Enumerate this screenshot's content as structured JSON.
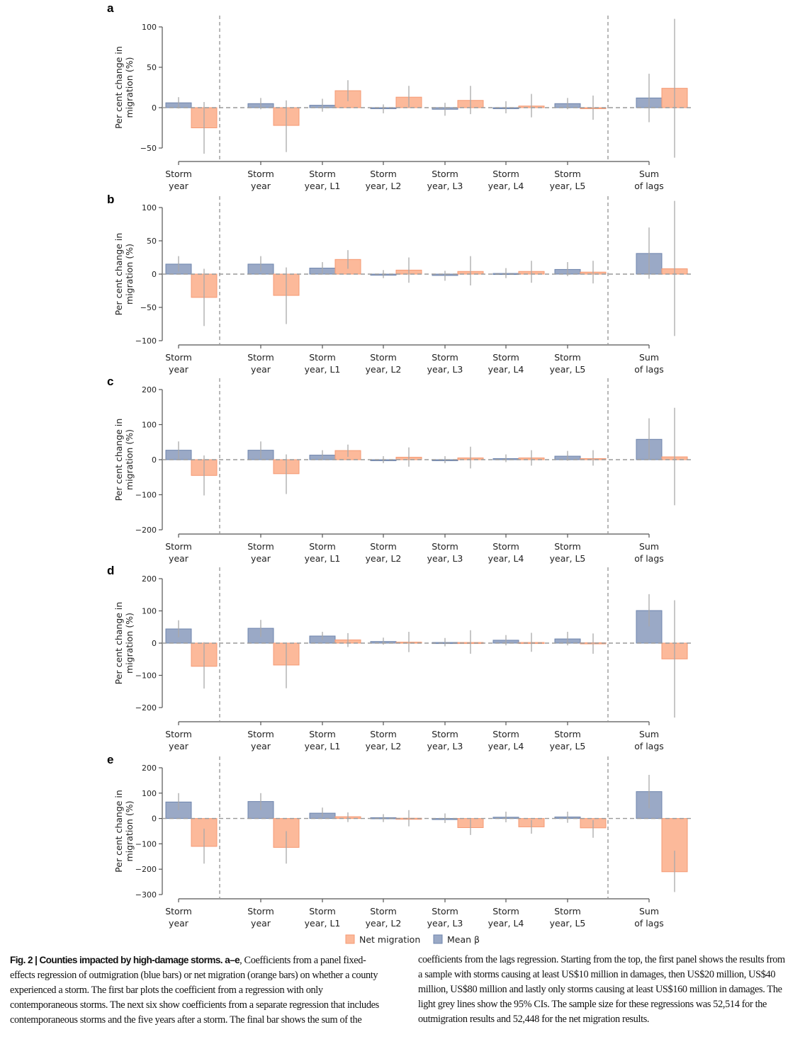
{
  "figure": {
    "colors": {
      "outmigration": "#9aa9c6",
      "outmigration_edge": "#6f85ad",
      "net": "#fcb99a",
      "net_edge": "#f59a74",
      "ci": "#a9a9a9",
      "axis": "#555555",
      "dash": "#9a9a9a"
    },
    "legend": {
      "net_label": "Net migration",
      "mean_label": "Mean β"
    },
    "caption": {
      "title": "Fig. 2 | Counties impacted by high-damage storms.",
      "panels_ref": "a–e",
      "col1": ", Coefficients from a panel fixed-effects regression of outmigration (blue bars) or net migration (orange bars) on whether a county experienced a storm. The first bar plots the coefficient from a regression with only contemporaneous storms. The next six show coefficients from a separate regression that includes contemporaneous storms and the five years after a storm. The final bar shows the sum of the",
      "col2": "coefficients from the lags regression. Starting from the top, the first panel shows the results from a sample with storms causing at least US$10 million in damages, then US$20 million, US$40 million, US$80 million and lastly only storms causing at least US$160 million in damages. The light grey lines show the 95% CIs. The sample size for these regressions was 52,514 for the outmigration results and 52,448 for the net migration results."
    }
  },
  "chart_data": [
    {
      "type": "bar",
      "panel": "a",
      "ylabel": "Per cent change in migration (%)",
      "categories": [
        [
          "Storm",
          "year"
        ],
        [
          "Storm",
          "year"
        ],
        [
          "Storm",
          "year, L1"
        ],
        [
          "Storm",
          "year, L2"
        ],
        [
          "Storm",
          "year, L3"
        ],
        [
          "Storm",
          "year, L4"
        ],
        [
          "Storm",
          "year, L5"
        ],
        [
          "Sum",
          "of lags"
        ]
      ],
      "ylim": [
        -50,
        100
      ],
      "yticks": [
        -50,
        0,
        50,
        100
      ],
      "series": [
        {
          "name": "Mean β",
          "values": [
            6,
            5,
            3,
            -1,
            -2,
            0,
            5,
            12
          ],
          "ci": [
            [
              -1,
              13
            ],
            [
              -2,
              12
            ],
            [
              -5,
              11
            ],
            [
              -7,
              4
            ],
            [
              -10,
              6
            ],
            [
              -7,
              8
            ],
            [
              -2,
              12
            ],
            [
              -18,
              42
            ]
          ]
        },
        {
          "name": "Net migration",
          "values": [
            -25,
            -22,
            21,
            13,
            9,
            2,
            0,
            24
          ],
          "ci": [
            [
              -57,
              7
            ],
            [
              -55,
              9
            ],
            [
              8,
              34
            ],
            [
              0,
              27
            ],
            [
              -8,
              27
            ],
            [
              -12,
              17
            ],
            [
              -15,
              15
            ],
            [
              -62,
              110
            ]
          ]
        }
      ]
    },
    {
      "type": "bar",
      "panel": "b",
      "ylabel": "Per cent change in migration (%)",
      "categories": [
        [
          "Storm",
          "year"
        ],
        [
          "Storm",
          "year"
        ],
        [
          "Storm",
          "year, L1"
        ],
        [
          "Storm",
          "year, L2"
        ],
        [
          "Storm",
          "year, L3"
        ],
        [
          "Storm",
          "year, L4"
        ],
        [
          "Storm",
          "year, L5"
        ],
        [
          "Sum",
          "of lags"
        ]
      ],
      "ylim": [
        -100,
        100
      ],
      "yticks": [
        -100,
        -50,
        0,
        50,
        100
      ],
      "series": [
        {
          "name": "Mean β",
          "values": [
            15,
            15,
            9,
            0,
            -2,
            1,
            7,
            31
          ],
          "ci": [
            [
              4,
              27
            ],
            [
              4,
              27
            ],
            [
              0,
              18
            ],
            [
              -6,
              6
            ],
            [
              -10,
              5
            ],
            [
              -6,
              9
            ],
            [
              -3,
              18
            ],
            [
              -7,
              70
            ]
          ]
        },
        {
          "name": "Net migration",
          "values": [
            -35,
            -32,
            22,
            6,
            4,
            4,
            3,
            8
          ],
          "ci": [
            [
              -78,
              8
            ],
            [
              -75,
              10
            ],
            [
              8,
              36
            ],
            [
              -13,
              25
            ],
            [
              -17,
              27
            ],
            [
              -13,
              20
            ],
            [
              -14,
              20
            ],
            [
              -93,
              110
            ]
          ]
        }
      ]
    },
    {
      "type": "bar",
      "panel": "c",
      "ylabel": "Per cent change in migration (%)",
      "categories": [
        [
          "Storm",
          "year"
        ],
        [
          "Storm",
          "year"
        ],
        [
          "Storm",
          "year, L1"
        ],
        [
          "Storm",
          "year, L2"
        ],
        [
          "Storm",
          "year, L3"
        ],
        [
          "Storm",
          "year, L4"
        ],
        [
          "Storm",
          "year, L5"
        ],
        [
          "Sum",
          "of lags"
        ]
      ],
      "ylim": [
        -200,
        200
      ],
      "yticks": [
        -200,
        -100,
        0,
        100,
        200
      ],
      "series": [
        {
          "name": "Mean β",
          "values": [
            27,
            27,
            13,
            0,
            0,
            3,
            10,
            58
          ],
          "ci": [
            [
              3,
              52
            ],
            [
              3,
              52
            ],
            [
              0,
              27
            ],
            [
              -10,
              10
            ],
            [
              -10,
              10
            ],
            [
              -7,
              15
            ],
            [
              -3,
              25
            ],
            [
              0,
              118
            ]
          ]
        },
        {
          "name": "Net migration",
          "values": [
            -45,
            -40,
            26,
            7,
            5,
            5,
            3,
            8
          ],
          "ci": [
            [
              -102,
              12
            ],
            [
              -98,
              15
            ],
            [
              8,
              43
            ],
            [
              -20,
              35
            ],
            [
              -25,
              37
            ],
            [
              -17,
              27
            ],
            [
              -17,
              27
            ],
            [
              -130,
              148
            ]
          ]
        }
      ]
    },
    {
      "type": "bar",
      "panel": "d",
      "ylabel": "Per cent change in migration (%)",
      "categories": [
        [
          "Storm",
          "year"
        ],
        [
          "Storm",
          "year"
        ],
        [
          "Storm",
          "year, L1"
        ],
        [
          "Storm",
          "year, L2"
        ],
        [
          "Storm",
          "year, L3"
        ],
        [
          "Storm",
          "year, L4"
        ],
        [
          "Storm",
          "year, L5"
        ],
        [
          "Sum",
          "of lags"
        ]
      ],
      "ylim": [
        -200,
        200
      ],
      "yticks": [
        -200,
        -100,
        0,
        100,
        200
      ],
      "series": [
        {
          "name": "Mean β",
          "values": [
            44,
            46,
            22,
            5,
            2,
            9,
            13,
            101
          ],
          "ci": [
            [
              18,
              71
            ],
            [
              19,
              72
            ],
            [
              10,
              35
            ],
            [
              -5,
              17
            ],
            [
              -10,
              16
            ],
            [
              -7,
              25
            ],
            [
              -7,
              35
            ],
            [
              52,
              152
            ]
          ]
        },
        {
          "name": "Net migration",
          "values": [
            -72,
            -68,
            10,
            3,
            2,
            2,
            1,
            -49
          ],
          "ci": [
            [
              -141,
              3
            ],
            [
              -140,
              2
            ],
            [
              -12,
              31
            ],
            [
              -28,
              35
            ],
            [
              -33,
              40
            ],
            [
              -27,
              32
            ],
            [
              -33,
              30
            ],
            [
              -231,
              133
            ]
          ]
        }
      ]
    },
    {
      "type": "bar",
      "panel": "e",
      "ylabel": "Per cent change in migration (%)",
      "categories": [
        [
          "Storm",
          "year"
        ],
        [
          "Storm",
          "year"
        ],
        [
          "Storm",
          "year, L1"
        ],
        [
          "Storm",
          "year, L2"
        ],
        [
          "Storm",
          "year, L3"
        ],
        [
          "Storm",
          "year, L4"
        ],
        [
          "Storm",
          "year, L5"
        ],
        [
          "Sum",
          "of lags"
        ]
      ],
      "ylim": [
        -300,
        200
      ],
      "yticks": [
        -300,
        -200,
        -100,
        0,
        100,
        200
      ],
      "series": [
        {
          "name": "Mean β",
          "values": [
            65,
            67,
            21,
            3,
            0,
            5,
            6,
            106
          ],
          "ci": [
            [
              33,
              100
            ],
            [
              33,
              100
            ],
            [
              6,
              43
            ],
            [
              -14,
              17
            ],
            [
              -18,
              20
            ],
            [
              -15,
              27
            ],
            [
              -17,
              27
            ],
            [
              40,
              172
            ]
          ]
        },
        {
          "name": "Net migration",
          "values": [
            -110,
            -114,
            7,
            1,
            -36,
            -33,
            -37,
            -210
          ],
          "ci": [
            [
              -178,
              -40
            ],
            [
              -178,
              -50
            ],
            [
              -14,
              24
            ],
            [
              -31,
              33
            ],
            [
              -65,
              -3
            ],
            [
              -60,
              -6
            ],
            [
              -76,
              -6
            ],
            [
              -290,
              -127
            ]
          ]
        }
      ]
    }
  ]
}
